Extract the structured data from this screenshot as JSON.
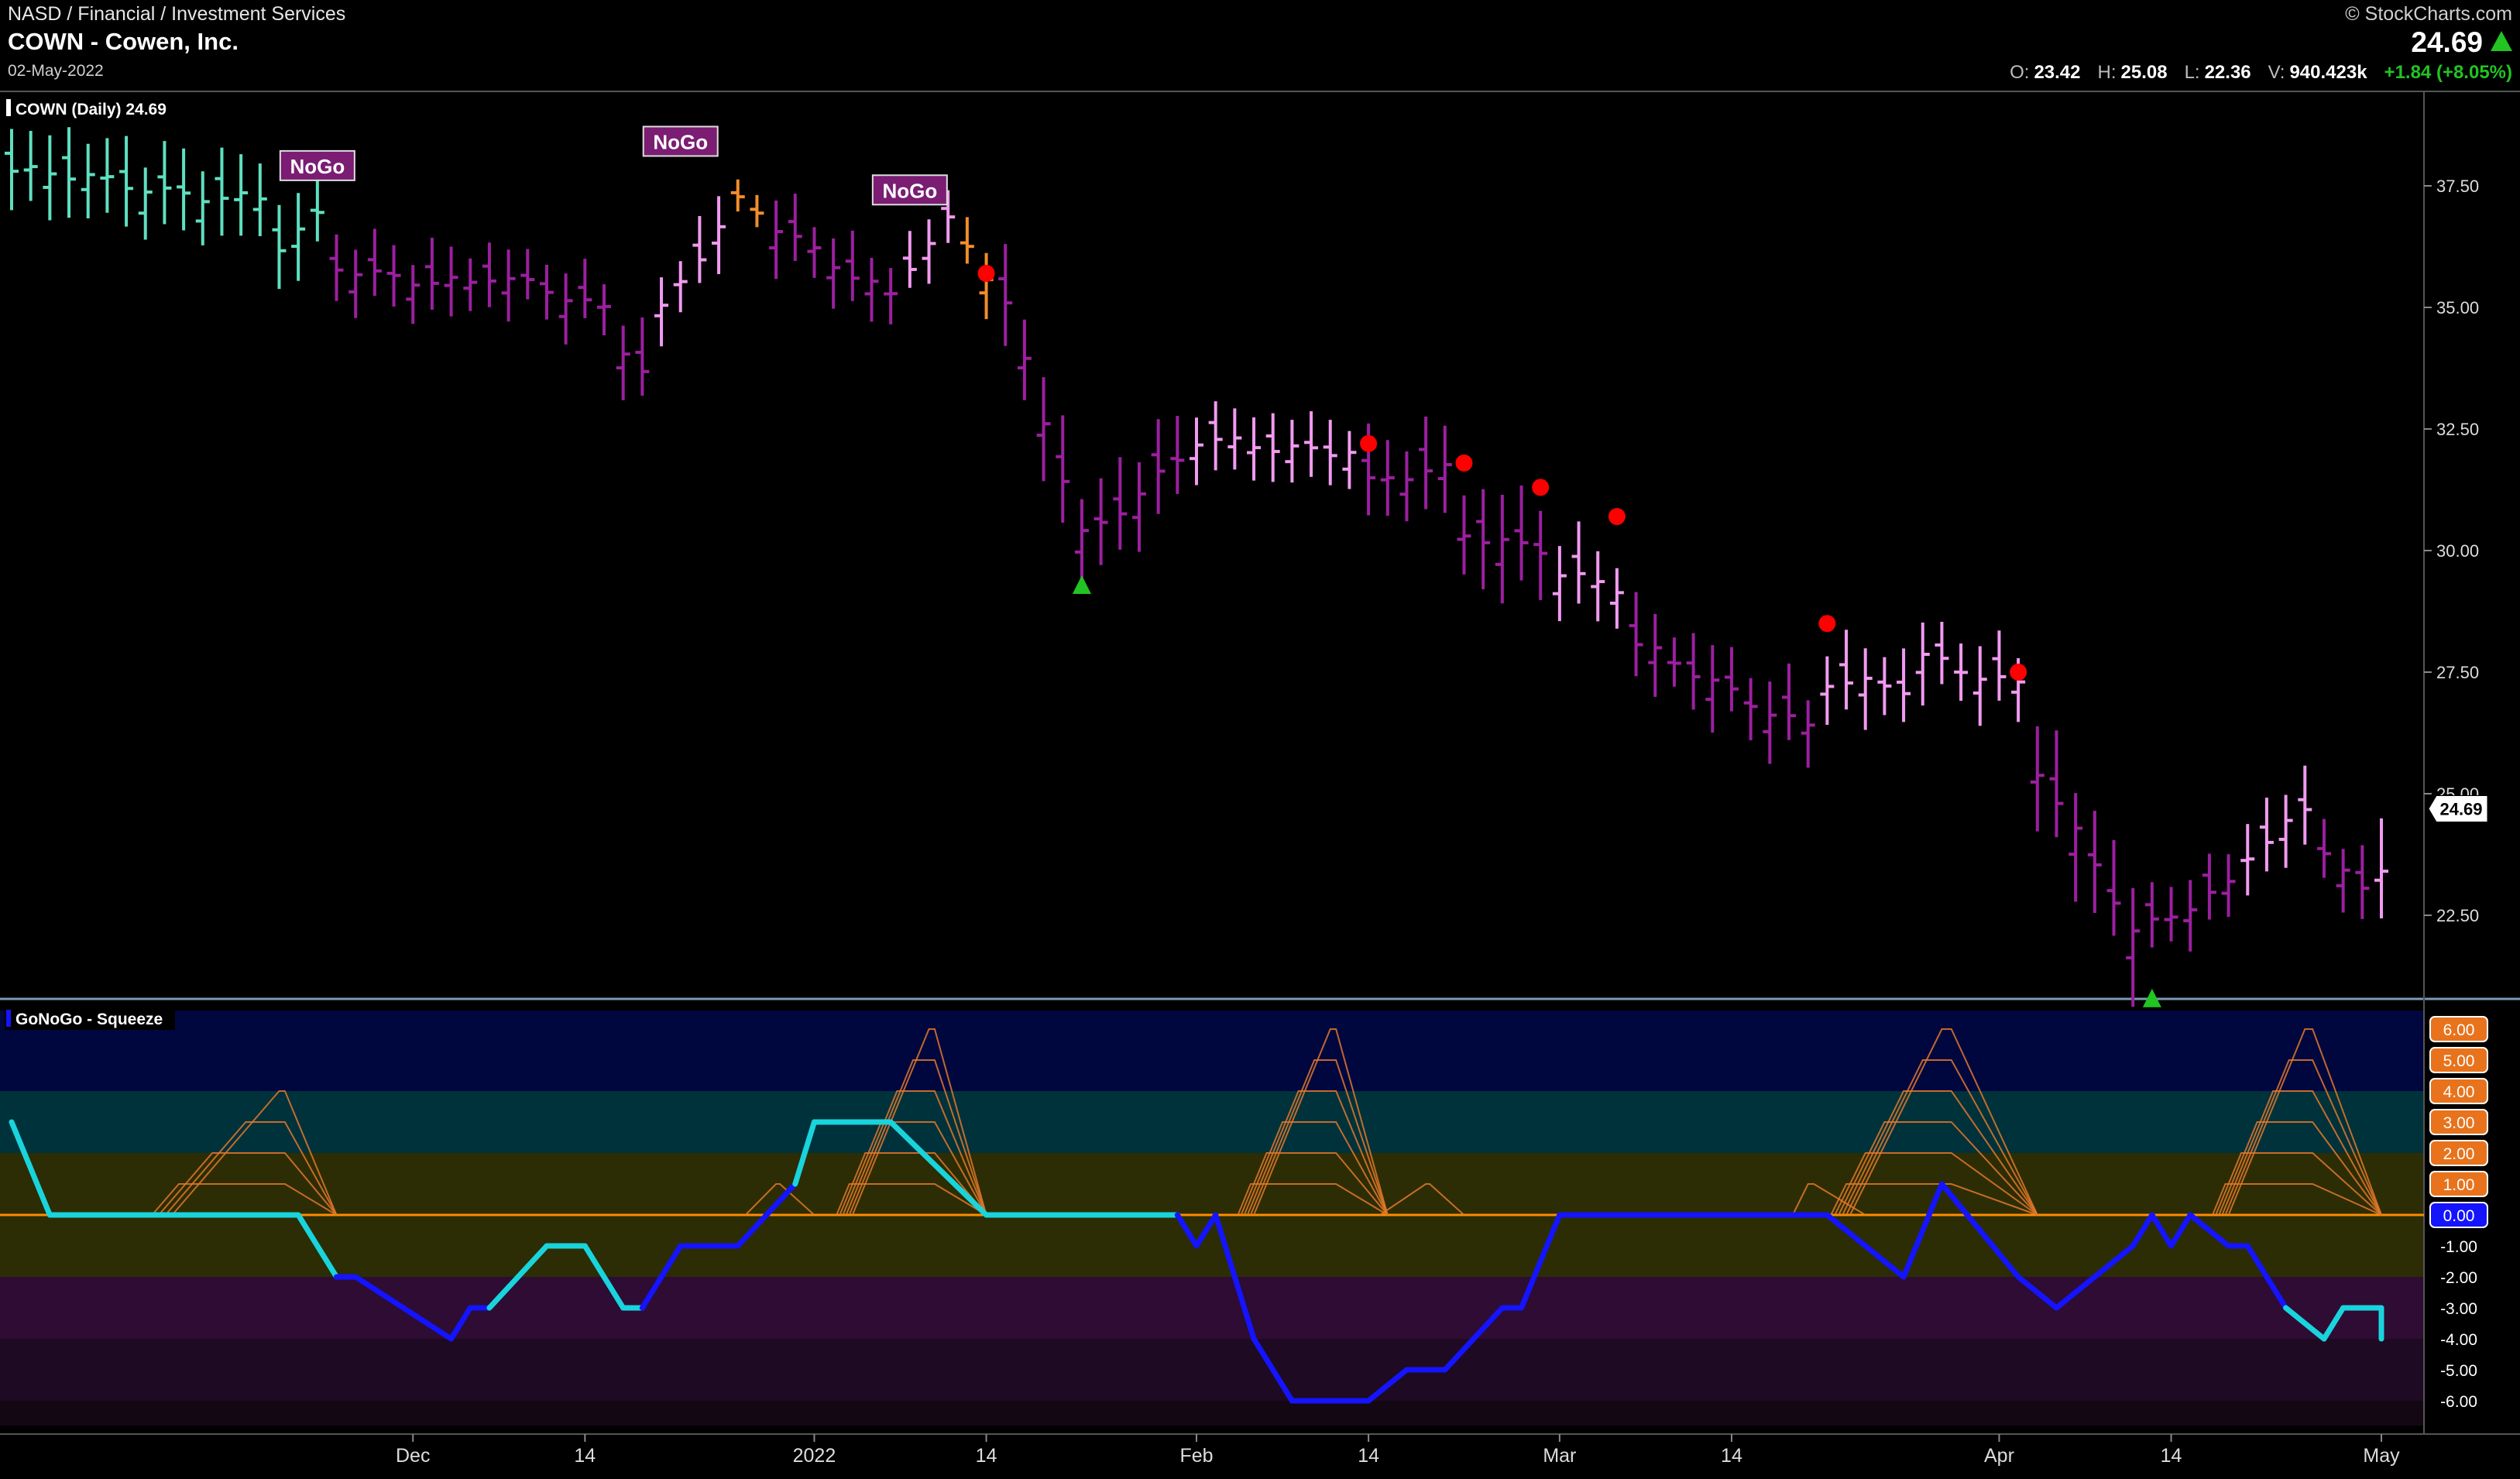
{
  "header": {
    "path": "NASD / Financial / Investment Services",
    "title": "COWN - Cowen, Inc.",
    "date": "02-May-2022",
    "brand": "© StockCharts.com",
    "last_price": "24.69",
    "ohlcv": {
      "open_label": "O:",
      "open": "23.42",
      "high_label": "H:",
      "high": "25.08",
      "low_label": "L:",
      "low": "22.36",
      "volume_label": "V:",
      "volume": "940.423k",
      "change": "+1.84 (+8.05%)"
    }
  },
  "colors": {
    "up_arrow": "#22c322",
    "signal_dot": "#ff0000",
    "bar_strong_nogo": "#9c1fa0",
    "bar_weak_nogo": "#f19af0",
    "bar_amber": "#f28e2b",
    "bar_go": "#5ee0c0",
    "osc_blue": "#1414ff",
    "osc_cyan": "#19d4dc",
    "zero_line": "#ff8c00"
  },
  "chart_data": [
    {
      "type": "ohlc",
      "legend": "COWN (Daily) 24.69",
      "last_label": "24.69",
      "y_ticks": [
        "37.50",
        "35.00",
        "32.50",
        "30.00",
        "27.50",
        "25.00",
        "22.50"
      ],
      "ylim": [
        21.0,
        39.0
      ],
      "x_ticks": [
        "Dec",
        "14",
        "2022",
        "14",
        "Feb",
        "14",
        "Mar",
        "14",
        "Apr",
        "14",
        "May"
      ],
      "x_tick_dates": [
        "2021-12-01",
        "2021-12-14",
        "2022-01-03",
        "2022-01-14",
        "2022-02-01",
        "2022-02-14",
        "2022-03-01",
        "2022-03-14",
        "2022-04-01",
        "2022-04-14",
        "2022-05-02"
      ],
      "nogo_labels": [
        {
          "text": "NoGo",
          "date": "2021-11-23",
          "price": 37.9
        },
        {
          "text": "NoGo",
          "date": "2021-12-21",
          "price": 38.4
        },
        {
          "text": "NoGo",
          "date": "2022-01-10",
          "price": 37.4
        }
      ],
      "signal_dots": [
        {
          "date": "2022-01-14",
          "price": 35.7
        },
        {
          "date": "2022-02-14",
          "price": 32.2
        },
        {
          "date": "2022-02-22",
          "price": 31.8
        },
        {
          "date": "2022-02-28",
          "price": 31.3
        },
        {
          "date": "2022-03-04",
          "price": 30.7
        },
        {
          "date": "2022-03-21",
          "price": 28.5
        },
        {
          "date": "2022-04-04",
          "price": 27.5
        }
      ],
      "up_arrows": [
        {
          "date": "2022-01-24",
          "price": 29.3
        },
        {
          "date": "2022-04-13",
          "price": 20.8
        }
      ],
      "price_segments": [
        {
          "start": "2021-11-01",
          "end": "2021-11-18",
          "from": 37.8,
          "to": 37.2,
          "color": "go",
          "range": 2.0
        },
        {
          "start": "2021-11-19",
          "end": "2021-11-23",
          "from": 36.2,
          "to": 36.8,
          "color": "go",
          "range": 2.0
        },
        {
          "start": "2021-11-24",
          "end": "2021-12-06",
          "from": 35.8,
          "to": 35.5,
          "color": "strong_nogo",
          "range": 1.6
        },
        {
          "start": "2021-12-07",
          "end": "2021-12-15",
          "from": 35.6,
          "to": 35.0,
          "color": "strong_nogo",
          "range": 1.5
        },
        {
          "start": "2021-12-16",
          "end": "2021-12-17",
          "from": 34.2,
          "to": 33.8,
          "color": "strong_nogo",
          "range": 1.8
        },
        {
          "start": "2021-12-20",
          "end": "2021-12-23",
          "from": 35.0,
          "to": 36.6,
          "color": "weak_nogo",
          "range": 1.6
        },
        {
          "start": "2021-12-24",
          "end": "2021-12-28",
          "from": 37.1,
          "to": 36.9,
          "color": "amber",
          "range": 0.9
        },
        {
          "start": "2021-12-29",
          "end": "2022-01-07",
          "from": 36.6,
          "to": 35.3,
          "color": "strong_nogo",
          "range": 1.6
        },
        {
          "start": "2022-01-10",
          "end": "2022-01-12",
          "from": 35.9,
          "to": 36.7,
          "color": "weak_nogo",
          "range": 1.4
        },
        {
          "start": "2022-01-13",
          "end": "2022-01-14",
          "from": 36.2,
          "to": 35.6,
          "color": "amber",
          "range": 1.4
        },
        {
          "start": "2022-01-17",
          "end": "2022-01-24",
          "from": 35.0,
          "to": 30.4,
          "color": "strong_nogo",
          "range": 2.4
        },
        {
          "start": "2022-01-25",
          "end": "2022-01-31",
          "from": 30.6,
          "to": 31.8,
          "color": "strong_nogo",
          "range": 2.2
        },
        {
          "start": "2022-02-01",
          "end": "2022-02-11",
          "from": 32.2,
          "to": 32.1,
          "color": "weak_nogo",
          "range": 1.6
        },
        {
          "start": "2022-02-14",
          "end": "2022-02-18",
          "from": 31.4,
          "to": 31.6,
          "color": "strong_nogo",
          "range": 2.0
        },
        {
          "start": "2022-02-21",
          "end": "2022-02-28",
          "from": 30.3,
          "to": 30.1,
          "color": "strong_nogo",
          "range": 2.4
        },
        {
          "start": "2022-03-01",
          "end": "2022-03-04",
          "from": 29.6,
          "to": 29.2,
          "color": "weak_nogo",
          "range": 1.8
        },
        {
          "start": "2022-03-07",
          "end": "2022-03-18",
          "from": 28.0,
          "to": 26.4,
          "color": "strong_nogo",
          "range": 1.8
        },
        {
          "start": "2022-03-21",
          "end": "2022-03-25",
          "from": 27.3,
          "to": 27.1,
          "color": "weak_nogo",
          "range": 1.8
        },
        {
          "start": "2022-03-28",
          "end": "2022-04-04",
          "from": 27.8,
          "to": 27.3,
          "color": "weak_nogo",
          "range": 1.7
        },
        {
          "start": "2022-04-05",
          "end": "2022-04-12",
          "from": 25.5,
          "to": 22.1,
          "color": "strong_nogo",
          "range": 2.6
        },
        {
          "start": "2022-04-13",
          "end": "2022-04-20",
          "from": 22.3,
          "to": 23.2,
          "color": "strong_nogo",
          "range": 1.6
        },
        {
          "start": "2022-04-21",
          "end": "2022-04-26",
          "from": 23.8,
          "to": 24.6,
          "color": "weak_nogo",
          "range": 1.8
        },
        {
          "start": "2022-04-27",
          "end": "2022-04-29",
          "from": 23.8,
          "to": 22.9,
          "color": "strong_nogo",
          "range": 1.6
        },
        {
          "start": "2022-05-02",
          "end": "2022-05-02",
          "from": 23.42,
          "to": 24.69,
          "color": "weak_nogo",
          "range": 2.72
        }
      ]
    },
    {
      "type": "line",
      "legend": "GoNoGo - Squeeze",
      "ylim": [
        -6.8,
        6.6
      ],
      "y_ticks": [
        "6.00",
        "5.00",
        "4.00",
        "3.00",
        "2.00",
        "1.00",
        "0.00",
        "-1.00",
        "-2.00",
        "-3.00",
        "-4.00",
        "-5.00",
        "-6.00"
      ],
      "series": [
        {
          "points": [
            {
              "date": "2021-11-01",
              "value": 3.0,
              "color": "cyan"
            },
            {
              "date": "2021-11-03",
              "value": 0.0,
              "color": "cyan"
            },
            {
              "date": "2021-11-22",
              "value": 0.0,
              "color": "cyan"
            },
            {
              "date": "2021-11-24",
              "value": -2.0,
              "color": "cyan"
            },
            {
              "date": "2021-11-26",
              "value": -2.0,
              "color": "blue"
            },
            {
              "date": "2021-12-03",
              "value": -4.0,
              "color": "blue"
            },
            {
              "date": "2021-12-06",
              "value": -3.0,
              "color": "blue"
            },
            {
              "date": "2021-12-07",
              "value": -3.0,
              "color": "blue"
            },
            {
              "date": "2021-12-10",
              "value": -1.0,
              "color": "cyan"
            },
            {
              "date": "2021-12-14",
              "value": -1.0,
              "color": "cyan"
            },
            {
              "date": "2021-12-16",
              "value": -3.0,
              "color": "cyan"
            },
            {
              "date": "2021-12-17",
              "value": -3.0,
              "color": "cyan"
            },
            {
              "date": "2021-12-21",
              "value": -1.0,
              "color": "blue"
            },
            {
              "date": "2021-12-27",
              "value": -1.0,
              "color": "blue"
            },
            {
              "date": "2021-12-30",
              "value": 1.0,
              "color": "blue"
            },
            {
              "date": "2022-01-03",
              "value": 3.0,
              "color": "cyan"
            },
            {
              "date": "2022-01-07",
              "value": 3.0,
              "color": "cyan"
            },
            {
              "date": "2022-01-14",
              "value": 0.0,
              "color": "cyan"
            },
            {
              "date": "2022-01-31",
              "value": 0.0,
              "color": "cyan"
            },
            {
              "date": "2022-02-01",
              "value": -1.0,
              "color": "blue"
            },
            {
              "date": "2022-02-02",
              "value": 0.0,
              "color": "blue"
            },
            {
              "date": "2022-02-04",
              "value": -4.0,
              "color": "blue"
            },
            {
              "date": "2022-02-08",
              "value": -6.0,
              "color": "blue"
            },
            {
              "date": "2022-02-14",
              "value": -6.0,
              "color": "blue"
            },
            {
              "date": "2022-02-16",
              "value": -5.0,
              "color": "blue"
            },
            {
              "date": "2022-02-18",
              "value": -5.0,
              "color": "blue"
            },
            {
              "date": "2022-02-24",
              "value": -3.0,
              "color": "blue"
            },
            {
              "date": "2022-02-25",
              "value": -3.0,
              "color": "blue"
            },
            {
              "date": "2022-03-01",
              "value": 0.0,
              "color": "blue"
            },
            {
              "date": "2022-03-21",
              "value": 0.0,
              "color": "blue"
            },
            {
              "date": "2022-03-25",
              "value": -2.0,
              "color": "blue"
            },
            {
              "date": "2022-03-29",
              "value": 1.0,
              "color": "blue"
            },
            {
              "date": "2022-04-04",
              "value": -2.0,
              "color": "blue"
            },
            {
              "date": "2022-04-06",
              "value": -3.0,
              "color": "blue"
            },
            {
              "date": "2022-04-08",
              "value": -2.0,
              "color": "blue"
            },
            {
              "date": "2022-04-12",
              "value": -1.0,
              "color": "blue"
            },
            {
              "date": "2022-04-13",
              "value": 0.0,
              "color": "blue"
            },
            {
              "date": "2022-04-14",
              "value": -1.0,
              "color": "blue"
            },
            {
              "date": "2022-04-18",
              "value": 0.0,
              "color": "blue"
            },
            {
              "date": "2022-04-20",
              "value": -1.0,
              "color": "blue"
            },
            {
              "date": "2022-04-21",
              "value": -1.0,
              "color": "blue"
            },
            {
              "date": "2022-04-25",
              "value": -3.0,
              "color": "blue"
            },
            {
              "date": "2022-04-27",
              "value": -4.0,
              "color": "cyan"
            },
            {
              "date": "2022-04-28",
              "value": -3.0,
              "color": "cyan"
            },
            {
              "date": "2022-04-30",
              "value": -3.0,
              "color": "cyan"
            },
            {
              "date": "2022-05-02",
              "value": -4.0,
              "color": "cyan"
            }
          ]
        }
      ]
    }
  ]
}
